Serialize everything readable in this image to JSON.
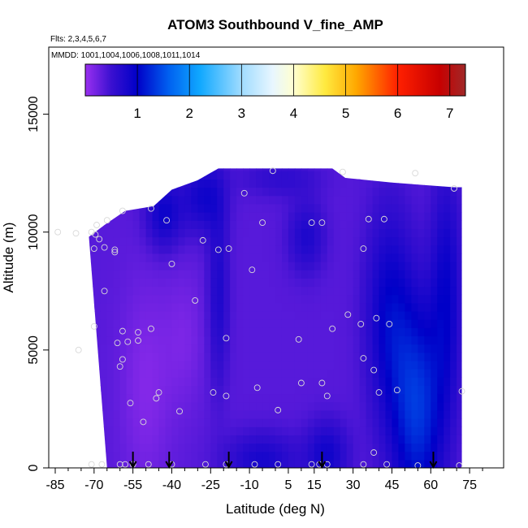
{
  "chart_data": {
    "type": "heatmap",
    "title": "ATOM3 Southbound V_fine_AMP",
    "flights_text": "Flts: 2,3,4,5,6,7",
    "dates_text": "MMDD: 1001,1004,1006,1008,1011,1014",
    "xlabel": "Latitude (deg N)",
    "ylabel": "Altitude (m)",
    "xlim": [
      -85,
      85
    ],
    "ylim": [
      0,
      17500
    ],
    "xticks": [
      -85,
      -70,
      -55,
      -40,
      -25,
      -10,
      5,
      15,
      30,
      45,
      60,
      75
    ],
    "xtick_labels": [
      "-85",
      "-70",
      "-55",
      "-40",
      "-25",
      "-10",
      "5",
      "15",
      "30",
      "45",
      "60",
      "75"
    ],
    "yticks": [
      0,
      5000,
      10000,
      15000
    ],
    "ytick_labels": [
      "0",
      "5000",
      "10000",
      "15000"
    ],
    "grid": false,
    "colorbar": {
      "min": 0,
      "max": 7.3,
      "ticks": [
        1,
        2,
        3,
        4,
        5,
        6,
        7
      ],
      "tick_labels": [
        "1",
        "2",
        "3",
        "4",
        "5",
        "6",
        "7"
      ],
      "stops": [
        {
          "v": 0.0,
          "c": "#9a30f0"
        },
        {
          "v": 0.5,
          "c": "#3a10d0"
        },
        {
          "v": 1.0,
          "c": "#0000c8"
        },
        {
          "v": 1.6,
          "c": "#0060f0"
        },
        {
          "v": 2.2,
          "c": "#10a8ff"
        },
        {
          "v": 3.0,
          "c": "#a0dcff"
        },
        {
          "v": 3.6,
          "c": "#e8f6ff"
        },
        {
          "v": 4.0,
          "c": "#ffffd0"
        },
        {
          "v": 4.6,
          "c": "#ffea40"
        },
        {
          "v": 5.2,
          "c": "#ffa800"
        },
        {
          "v": 6.0,
          "c": "#ff2000"
        },
        {
          "v": 6.8,
          "c": "#c80000"
        },
        {
          "v": 7.3,
          "c": "#a02828"
        }
      ]
    },
    "field_profile": [
      {
        "lat": -72,
        "top": 9800
      },
      {
        "lat": -66,
        "top": 10300
      },
      {
        "lat": -58,
        "top": 10900
      },
      {
        "lat": -47,
        "top": 11100
      },
      {
        "lat": -40,
        "top": 11800
      },
      {
        "lat": -30,
        "top": 12200
      },
      {
        "lat": -22,
        "top": 12700
      },
      {
        "lat": 0,
        "top": 12700
      },
      {
        "lat": 22,
        "top": 12700
      },
      {
        "lat": 27,
        "top": 12300
      },
      {
        "lat": 45,
        "top": 12100
      },
      {
        "lat": 69,
        "top": 11900
      },
      {
        "lat": 72,
        "top": 11900
      }
    ],
    "field_bottom_left": [
      -65,
      0
    ],
    "field_right_lat": 72,
    "field_values": {
      "background": 0.35,
      "features": [
        {
          "lat": 55,
          "alt": 2500,
          "value": 1.3,
          "r_lat": 10,
          "r_alt": 4500
        },
        {
          "lat": 44,
          "alt": 6500,
          "value": 0.95,
          "r_lat": 9,
          "r_alt": 4500
        },
        {
          "lat": 66,
          "alt": 7500,
          "value": 0.9,
          "r_lat": 6,
          "r_alt": 5000
        },
        {
          "lat": -43,
          "alt": 10800,
          "value": 0.9,
          "r_lat": 7,
          "r_alt": 1500
        },
        {
          "lat": -28,
          "alt": 11500,
          "value": 0.85,
          "r_lat": 8,
          "r_alt": 1500
        },
        {
          "lat": -22,
          "alt": 7500,
          "value": 0.75,
          "r_lat": 4,
          "r_alt": 4000
        },
        {
          "lat": -5,
          "alt": 300,
          "value": 0.8,
          "r_lat": 14,
          "r_alt": 1200
        },
        {
          "lat": 20,
          "alt": 600,
          "value": 0.85,
          "r_lat": 8,
          "r_alt": 1400
        },
        {
          "lat": 12,
          "alt": 9800,
          "value": 0.75,
          "r_lat": 7,
          "r_alt": 1500
        },
        {
          "lat": 2,
          "alt": 12300,
          "value": 0.6,
          "r_lat": 15,
          "r_alt": 800
        },
        {
          "lat": -50,
          "alt": 3500,
          "value": 0.12,
          "r_lat": 10,
          "r_alt": 4500
        },
        {
          "lat": -35,
          "alt": 5500,
          "value": 0.18,
          "r_lat": 8,
          "r_alt": 3000
        }
      ]
    },
    "sample_points": [
      [
        -84,
        10000
      ],
      [
        -77,
        9950
      ],
      [
        -71,
        10000
      ],
      [
        -69,
        10300
      ],
      [
        -69.5,
        9900
      ],
      [
        -68,
        9700
      ],
      [
        -70,
        9300
      ],
      [
        -66,
        9350
      ],
      [
        -65,
        10500
      ],
      [
        -62,
        9250
      ],
      [
        -59,
        10900
      ],
      [
        -48,
        11000
      ],
      [
        -42,
        10500
      ],
      [
        -28,
        9650
      ],
      [
        -22,
        9250
      ],
      [
        -18,
        9300
      ],
      [
        -1,
        12600
      ],
      [
        -12,
        11650
      ],
      [
        -9,
        8400
      ],
      [
        -5,
        10400
      ],
      [
        14,
        10400
      ],
      [
        18,
        10400
      ],
      [
        -40,
        8650
      ],
      [
        -31,
        7100
      ],
      [
        -62,
        9150
      ],
      [
        -66,
        7500
      ],
      [
        -70,
        6000
      ],
      [
        -59,
        5800
      ],
      [
        -53,
        5750
      ],
      [
        -48,
        5900
      ],
      [
        -53,
        5400
      ],
      [
        -57,
        5350
      ],
      [
        -61,
        5300
      ],
      [
        -59,
        4600
      ],
      [
        -60,
        4300
      ],
      [
        -76,
        5000
      ],
      [
        -19,
        5500
      ],
      [
        -45,
        3200
      ],
      [
        -46,
        2950
      ],
      [
        -56,
        2750
      ],
      [
        -51,
        1950
      ],
      [
        -37,
        2400
      ],
      [
        -24,
        3200
      ],
      [
        -19,
        3050
      ],
      [
        -7,
        3400
      ],
      [
        1,
        2450
      ],
      [
        10,
        3600
      ],
      [
        18,
        3600
      ],
      [
        20,
        3050
      ],
      [
        34,
        4650
      ],
      [
        38,
        4150
      ],
      [
        40,
        3200
      ],
      [
        47,
        3300
      ],
      [
        33,
        6100
      ],
      [
        28,
        6500
      ],
      [
        22,
        5900
      ],
      [
        9,
        5450
      ],
      [
        39,
        6350
      ],
      [
        44,
        6100
      ],
      [
        36,
        10550
      ],
      [
        42,
        10550
      ],
      [
        34,
        9300
      ],
      [
        54,
        12500
      ],
      [
        69,
        11850
      ],
      [
        26,
        12550
      ],
      [
        -71,
        150
      ],
      [
        -67,
        150
      ],
      [
        -60,
        150
      ],
      [
        -58,
        150
      ],
      [
        -55,
        150
      ],
      [
        -49,
        150
      ],
      [
        -40,
        150
      ],
      [
        -27,
        150
      ],
      [
        -19,
        150
      ],
      [
        -8,
        150
      ],
      [
        1,
        150
      ],
      [
        14,
        150
      ],
      [
        17,
        150
      ],
      [
        20,
        150
      ],
      [
        34,
        150
      ],
      [
        38,
        650
      ],
      [
        43,
        150
      ],
      [
        55,
        100
      ],
      [
        71,
        100
      ],
      [
        72,
        3250
      ]
    ],
    "arrow_lats": [
      -55,
      -41,
      -18,
      18,
      61
    ]
  }
}
